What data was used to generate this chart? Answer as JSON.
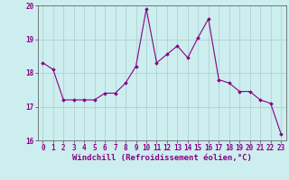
{
  "x": [
    0,
    1,
    2,
    3,
    4,
    5,
    6,
    7,
    8,
    9,
    10,
    11,
    12,
    13,
    14,
    15,
    16,
    17,
    18,
    19,
    20,
    21,
    22,
    23
  ],
  "y": [
    18.3,
    18.1,
    17.2,
    17.2,
    17.2,
    17.2,
    17.4,
    17.4,
    17.7,
    18.2,
    19.9,
    18.3,
    18.55,
    18.8,
    18.45,
    19.05,
    19.6,
    17.8,
    17.7,
    17.45,
    17.45,
    17.2,
    17.1,
    16.2
  ],
  "line_color": "#880088",
  "marker": "D",
  "marker_size": 1.8,
  "line_width": 0.8,
  "bg_color": "#cceeee",
  "grid_color": "#aacccc",
  "xlabel": "Windchill (Refroidissement éolien,°C)",
  "xlabel_fontsize": 6.5,
  "ylim": [
    16,
    20
  ],
  "xlim": [
    -0.5,
    23.5
  ],
  "yticks": [
    16,
    17,
    18,
    19,
    20
  ],
  "xticks": [
    0,
    1,
    2,
    3,
    4,
    5,
    6,
    7,
    8,
    9,
    10,
    11,
    12,
    13,
    14,
    15,
    16,
    17,
    18,
    19,
    20,
    21,
    22,
    23
  ],
  "tick_fontsize": 5.5,
  "spine_color": "#666666"
}
